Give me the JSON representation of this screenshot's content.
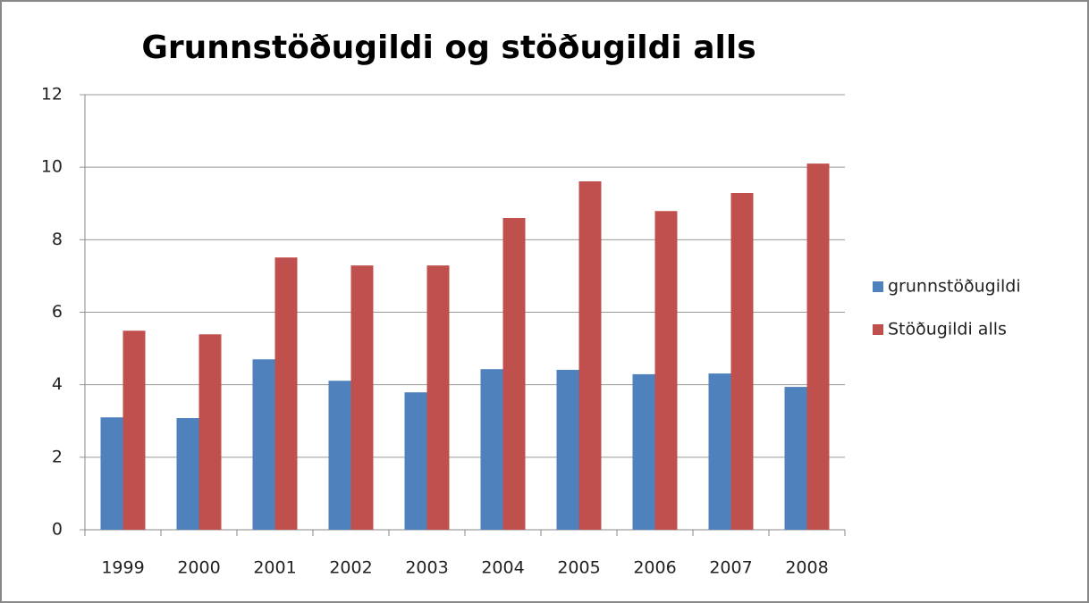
{
  "chart_data": {
    "type": "bar",
    "title": "Grunnstöðugildi og stöðugildi alls",
    "categories": [
      "1999",
      "2000",
      "2001",
      "2002",
      "2003",
      "2004",
      "2005",
      "2006",
      "2007",
      "2008"
    ],
    "series": [
      {
        "name": "grunnstöðugildi",
        "color": "#4f81bd",
        "values": [
          3.1,
          3.08,
          4.7,
          4.11,
          3.79,
          4.43,
          4.41,
          4.29,
          4.31,
          3.94
        ]
      },
      {
        "name": "Stöðugildi alls",
        "color": "#c0504d",
        "values": [
          5.49,
          5.39,
          7.51,
          7.29,
          7.29,
          8.6,
          9.61,
          8.79,
          9.29,
          10.1
        ]
      }
    ],
    "ylim": [
      0,
      12
    ],
    "yticks": [
      0,
      2,
      4,
      6,
      8,
      10,
      12
    ],
    "grid": true,
    "legend": "right"
  }
}
